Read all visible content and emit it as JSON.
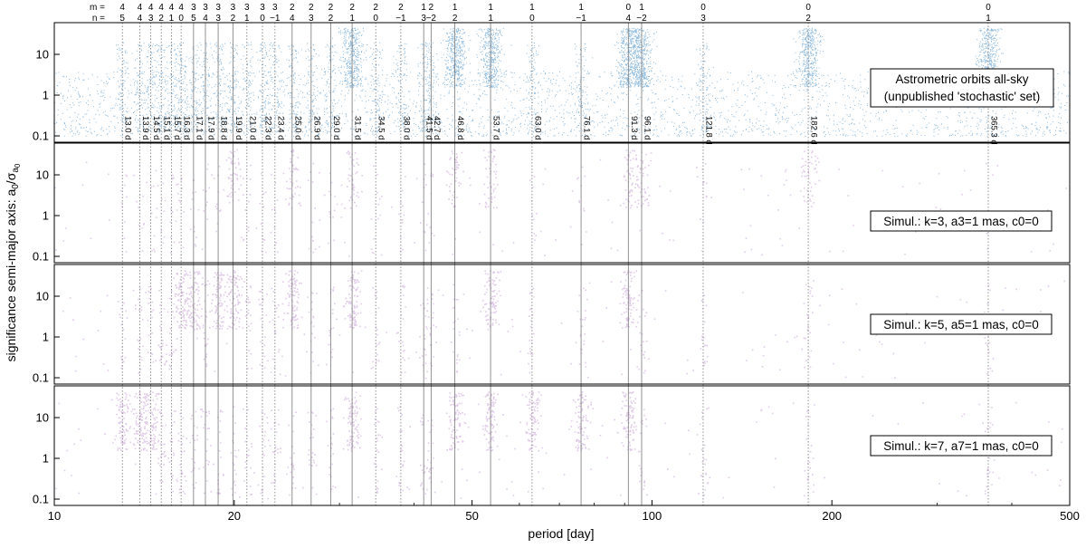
{
  "chart_data": {
    "type": "scatter",
    "xlabel": "period [day]",
    "ylabel": "significance semi-major axis: a0/σa0",
    "xscale": "log",
    "yscale": "log",
    "xlim": [
      10,
      500
    ],
    "ylim": [
      0.07,
      60
    ],
    "x_ticks": [
      10,
      20,
      50,
      100,
      200,
      500
    ],
    "x_tick_labels": [
      "10",
      "20",
      "50",
      "100",
      "200",
      "500"
    ],
    "y_ticks": [
      0.1,
      1,
      10
    ],
    "y_tick_labels": [
      "0.1",
      "1",
      "10"
    ],
    "mn_row_labels": [
      "m =",
      "n ="
    ],
    "alias_lines": [
      {
        "period": 13.0,
        "label": "13.0 d",
        "m": "4",
        "n": "5"
      },
      {
        "period": 13.9,
        "label": "13.9 d",
        "m": "4",
        "n": "4"
      },
      {
        "period": 14.5,
        "label": "14.5 d",
        "m": "4",
        "n": "3"
      },
      {
        "period": 15.1,
        "label": "15.1 d",
        "m": "4",
        "n": "2"
      },
      {
        "period": 15.7,
        "label": "15.7 d",
        "m": "4",
        "n": "1"
      },
      {
        "period": 16.3,
        "label": "16.3 d",
        "m": "4",
        "n": "0"
      },
      {
        "period": 17.1,
        "label": "17.1 d",
        "m": "3",
        "n": "5"
      },
      {
        "period": 17.9,
        "label": "17.9 d",
        "m": "3",
        "n": "4"
      },
      {
        "period": 18.8,
        "label": "18.8 d",
        "m": "3",
        "n": "3"
      },
      {
        "period": 19.9,
        "label": "19.9 d",
        "m": "3",
        "n": "2"
      },
      {
        "period": 21.0,
        "label": "21.0 d",
        "m": "3",
        "n": "1"
      },
      {
        "period": 22.3,
        "label": "22.3 d",
        "m": "3",
        "n": "0"
      },
      {
        "period": 23.4,
        "label": "23.4 d",
        "m": "3",
        "n": "−1"
      },
      {
        "period": 25.0,
        "label": "25.0 d",
        "m": "2",
        "n": "4"
      },
      {
        "period": 26.9,
        "label": "26.9 d",
        "m": "2",
        "n": "3"
      },
      {
        "period": 29.0,
        "label": "29.0 d",
        "m": "2",
        "n": "2"
      },
      {
        "period": 31.5,
        "label": "31.5 d",
        "m": "2",
        "n": "1"
      },
      {
        "period": 34.5,
        "label": "34.5 d",
        "m": "2",
        "n": "0"
      },
      {
        "period": 38.0,
        "label": "38.0 d",
        "m": "2",
        "n": "−1"
      },
      {
        "period": 41.5,
        "label": "41.5 d",
        "m": "1",
        "n": "3"
      },
      {
        "period": 42.7,
        "label": "42.7 d",
        "m": "2",
        "n": "−2"
      },
      {
        "period": 46.8,
        "label": "46.8 d",
        "m": "1",
        "n": "2"
      },
      {
        "period": 53.7,
        "label": "53.7 d",
        "m": "1",
        "n": "1"
      },
      {
        "period": 63.0,
        "label": "63.0 d",
        "m": "1",
        "n": "0"
      },
      {
        "period": 76.1,
        "label": "76.1 d",
        "m": "1",
        "n": "−1"
      },
      {
        "period": 91.3,
        "label": "91.3 d",
        "m": "0",
        "n": "4"
      },
      {
        "period": 96.1,
        "label": "96.1 d",
        "m": "1",
        "n": "−2"
      },
      {
        "period": 121.8,
        "label": "121.8 d",
        "m": "0",
        "n": "3"
      },
      {
        "period": 182.6,
        "label": "182.6 d",
        "m": "0",
        "n": "2"
      },
      {
        "period": 365.3,
        "label": "365.3 d",
        "m": "0",
        "n": "1"
      }
    ],
    "panels": [
      {
        "id": "observed",
        "annotation": [
          "Astrometric orbits all-sky",
          "(unpublished 'stochastic' set)"
        ],
        "color": "#2e7fc1",
        "density": "dense",
        "strong_peaks": [
          31.5,
          46.8,
          53.7,
          91.3,
          96.1,
          182.6,
          365.3
        ]
      },
      {
        "id": "k3",
        "annotation": [
          "Simul.:  k=3, a3=1 mas, c0=0"
        ],
        "color": "#8e44ad",
        "density": "sparse",
        "strong_peaks": [
          19.9,
          25.0,
          31.5,
          46.8,
          53.7,
          91.3,
          96.1,
          182.6
        ]
      },
      {
        "id": "k5",
        "annotation": [
          "Simul.:  k=5, a5=1 mas, c0=0"
        ],
        "color": "#8e44ad",
        "density": "medium",
        "strong_peaks": [
          16.3,
          17.1,
          18.8,
          19.9,
          25.0,
          31.5,
          53.7,
          91.3
        ]
      },
      {
        "id": "k7",
        "annotation": [
          "Simul.:  k=7, a7=1 mas, c0=0"
        ],
        "color": "#8e44ad",
        "density": "medium",
        "strong_peaks": [
          13.0,
          13.9,
          14.5,
          31.5,
          46.8,
          53.7,
          63.0,
          76.1,
          91.3
        ]
      }
    ]
  }
}
